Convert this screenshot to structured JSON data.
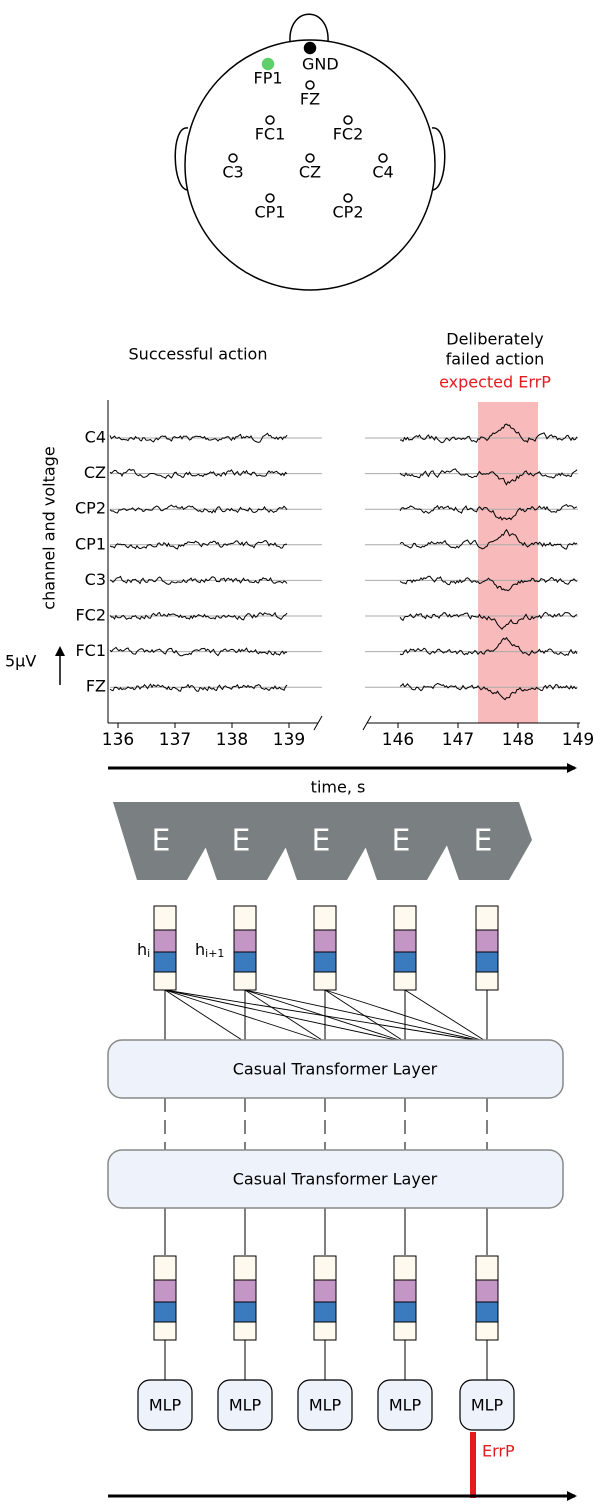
{
  "head": {
    "electrodes": [
      "GND",
      "FP1",
      "FZ",
      "FC1",
      "FC2",
      "C3",
      "CZ",
      "C4",
      "CP1",
      "CP2"
    ]
  },
  "eeg": {
    "left_title": "Successful action",
    "right_title": [
      "Deliberately",
      "failed action"
    ],
    "annotation": "expected ErrP",
    "y_label": "channel and voltage",
    "channels": [
      "C4",
      "CZ",
      "CP2",
      "CP1",
      "C3",
      "FC2",
      "FC1",
      "FZ"
    ],
    "scale_label": "5µV",
    "x_ticks_left": [
      136,
      137,
      138,
      139
    ],
    "x_ticks_right": [
      146,
      147,
      148,
      149
    ],
    "x_label": "time, s"
  },
  "encoders": [
    "E",
    "E",
    "E",
    "E",
    "E"
  ],
  "hidden_labels": [
    {
      "base": "h",
      "sub": "i"
    },
    {
      "base": "h",
      "sub": "i+1"
    }
  ],
  "layers": [
    "Casual Transformer Layer",
    "Casual Transformer Layer"
  ],
  "heads": [
    "MLP",
    "MLP",
    "MLP",
    "MLP",
    "MLP"
  ],
  "output_label": "ErrP"
}
